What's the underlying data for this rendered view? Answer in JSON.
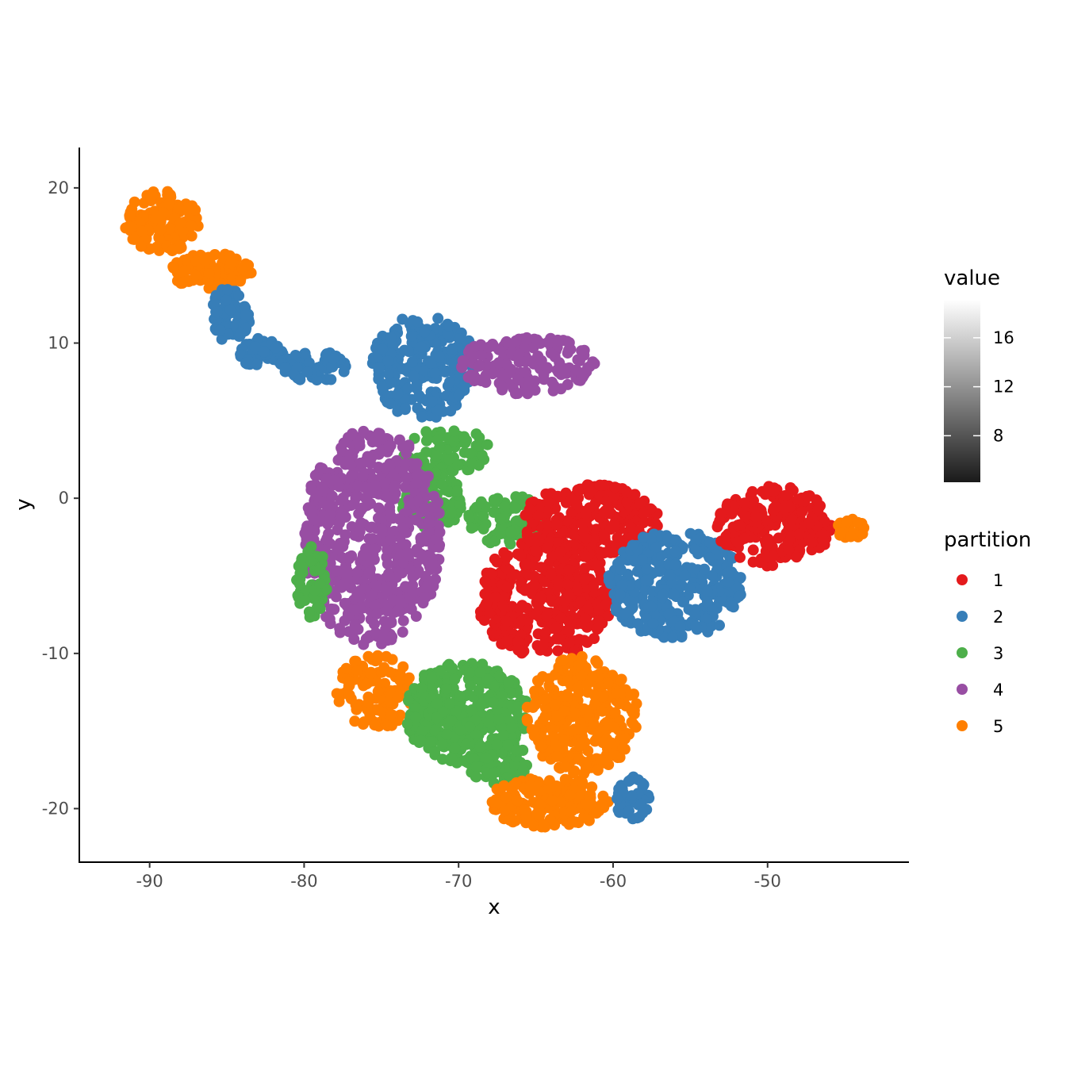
{
  "chart_data": {
    "type": "scatter",
    "title": "",
    "xlabel": "x",
    "ylabel": "y",
    "xlim": [
      -94.5,
      -40.9
    ],
    "ylim": [
      -23.4,
      22.6
    ],
    "x_ticks": [
      -90,
      -80,
      -70,
      -60,
      -50
    ],
    "y_ticks": [
      -20,
      -10,
      0,
      10,
      20
    ],
    "grid": false,
    "colors": {
      "1": "#e41a1c",
      "2": "#377eb8",
      "3": "#4daf4a",
      "4": "#984ea3",
      "5": "#ff7f00"
    },
    "legend_value": {
      "title": "value",
      "ticks": [
        "8",
        "12",
        "16"
      ],
      "tick_values": [
        8,
        12,
        16
      ],
      "range": [
        4.2,
        19.1
      ],
      "gradient": [
        "#1a1a1a",
        "#ffffff"
      ]
    },
    "legend_partition": {
      "title": "partition",
      "entries": [
        "1",
        "2",
        "3",
        "4",
        "5"
      ]
    },
    "clusters": [
      {
        "partition": "5",
        "cx": -89.2,
        "cy": 17.8,
        "rx": 2.4,
        "ry": 2.0,
        "n": 140
      },
      {
        "partition": "5",
        "cx": -86.0,
        "cy": 14.6,
        "rx": 2.6,
        "ry": 1.2,
        "n": 110
      },
      {
        "partition": "2",
        "cx": -84.8,
        "cy": 11.8,
        "rx": 1.3,
        "ry": 1.8,
        "n": 70
      },
      {
        "partition": "2",
        "cx": -82.8,
        "cy": 9.4,
        "rx": 1.6,
        "ry": 0.9,
        "n": 50
      },
      {
        "partition": "2",
        "cx": -79.4,
        "cy": 8.5,
        "rx": 2.2,
        "ry": 1.0,
        "n": 60
      },
      {
        "partition": "2",
        "cx": -72.2,
        "cy": 8.5,
        "rx": 3.4,
        "ry": 3.4,
        "n": 250
      },
      {
        "partition": "4",
        "cx": -65.6,
        "cy": 8.6,
        "rx": 4.4,
        "ry": 1.9,
        "n": 170
      },
      {
        "partition": "3",
        "cx": -70.8,
        "cy": 3.0,
        "rx": 2.8,
        "ry": 1.6,
        "n": 80
      },
      {
        "partition": "3",
        "cx": -71.8,
        "cy": -0.2,
        "rx": 2.0,
        "ry": 2.0,
        "n": 90
      },
      {
        "partition": "3",
        "cx": -66.8,
        "cy": -1.5,
        "rx": 2.6,
        "ry": 1.7,
        "n": 90
      },
      {
        "partition": "4",
        "cx": -75.6,
        "cy": -2.5,
        "rx": 4.5,
        "ry": 7.0,
        "n": 600
      },
      {
        "partition": "3",
        "cx": -79.5,
        "cy": -5.4,
        "rx": 1.0,
        "ry": 2.3,
        "n": 60
      },
      {
        "partition": "1",
        "cx": -61.5,
        "cy": -1.4,
        "rx": 4.5,
        "ry": 2.3,
        "n": 260
      },
      {
        "partition": "1",
        "cx": -64.4,
        "cy": -6.4,
        "rx": 4.4,
        "ry": 3.9,
        "n": 420
      },
      {
        "partition": "2",
        "cx": -56.0,
        "cy": -5.6,
        "rx": 4.4,
        "ry": 3.5,
        "n": 360
      },
      {
        "partition": "1",
        "cx": -49.6,
        "cy": -1.8,
        "rx": 3.7,
        "ry": 2.6,
        "n": 240
      },
      {
        "partition": "5",
        "cx": -44.6,
        "cy": -1.9,
        "rx": 1.0,
        "ry": 0.7,
        "n": 25
      },
      {
        "partition": "5",
        "cx": -75.4,
        "cy": -12.5,
        "rx": 2.5,
        "ry": 2.4,
        "n": 110
      },
      {
        "partition": "3",
        "cx": -69.5,
        "cy": -13.8,
        "rx": 4.0,
        "ry": 3.3,
        "n": 380
      },
      {
        "partition": "3",
        "cx": -67.5,
        "cy": -17.0,
        "rx": 2.0,
        "ry": 1.4,
        "n": 70
      },
      {
        "partition": "5",
        "cx": -62.0,
        "cy": -14.0,
        "rx": 3.6,
        "ry": 3.8,
        "n": 310
      },
      {
        "partition": "5",
        "cx": -64.2,
        "cy": -19.6,
        "rx": 4.0,
        "ry": 1.6,
        "n": 170
      },
      {
        "partition": "2",
        "cx": -58.8,
        "cy": -19.3,
        "rx": 1.3,
        "ry": 1.4,
        "n": 40
      }
    ]
  }
}
